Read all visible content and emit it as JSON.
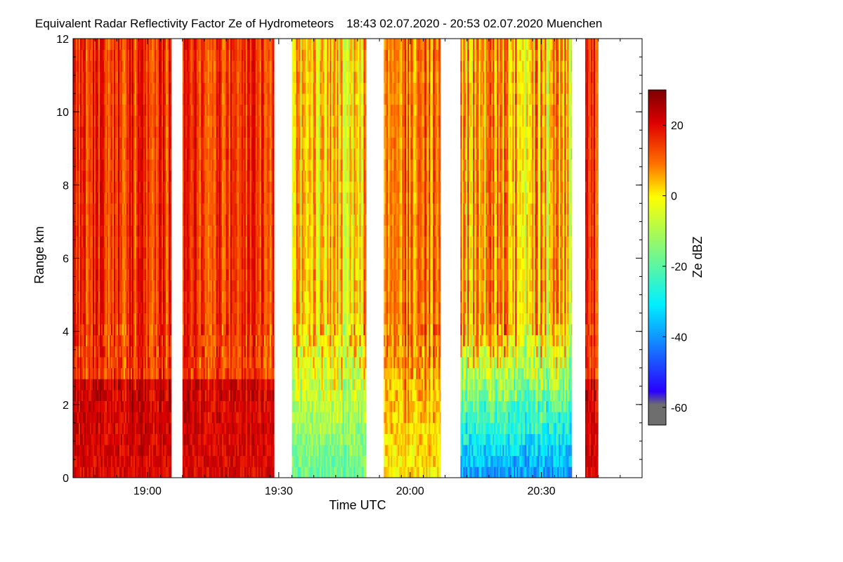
{
  "chart_data": {
    "type": "heatmap",
    "title": "Equivalent Radar Reflectivity Factor Ze of Hydrometeors",
    "time_span": "18:43 02.07.2020 - 20:53 02.07.2020",
    "location": "Muenchen",
    "xlabel": "Time UTC",
    "ylabel": "Range km",
    "x_range_utc": [
      "18:43",
      "20:53"
    ],
    "x_range_minutes": [
      0,
      130
    ],
    "x_ticks": [
      {
        "label": "19:00",
        "minutes": 17
      },
      {
        "label": "19:30",
        "minutes": 47
      },
      {
        "label": "20:00",
        "minutes": 77
      },
      {
        "label": "20:30",
        "minutes": 107
      }
    ],
    "y_ticks": [
      "0",
      "2",
      "4",
      "6",
      "8",
      "10",
      "12"
    ],
    "y_tick_values": [
      0,
      2,
      4,
      6,
      8,
      10,
      12
    ],
    "ylim": [
      0,
      12
    ],
    "colorbar": {
      "label": "Ze dBZ",
      "range": [
        -65,
        30
      ],
      "ticks": [
        "20",
        "0",
        "-20",
        "-40",
        "-60"
      ],
      "tick_values": [
        20,
        0,
        -20,
        -40,
        -60
      ],
      "colormap": [
        "#6e6e6e",
        "#2a00ff",
        "#00f0ff",
        "#ffff00",
        "#ff7000",
        "#e00000",
        "#7a0000"
      ]
    },
    "segments": [
      {
        "start": 0,
        "end": 22.5,
        "regime": "strong"
      },
      {
        "start": 25,
        "end": 46,
        "regime": "strong"
      },
      {
        "start": 50,
        "end": 67,
        "regime": "mixed"
      },
      {
        "start": 71,
        "end": 84,
        "regime": "mixed-strong"
      },
      {
        "start": 88.5,
        "end": 114,
        "regime": "mixed-weak"
      },
      {
        "start": 117,
        "end": 120,
        "regime": "strong"
      }
    ]
  }
}
